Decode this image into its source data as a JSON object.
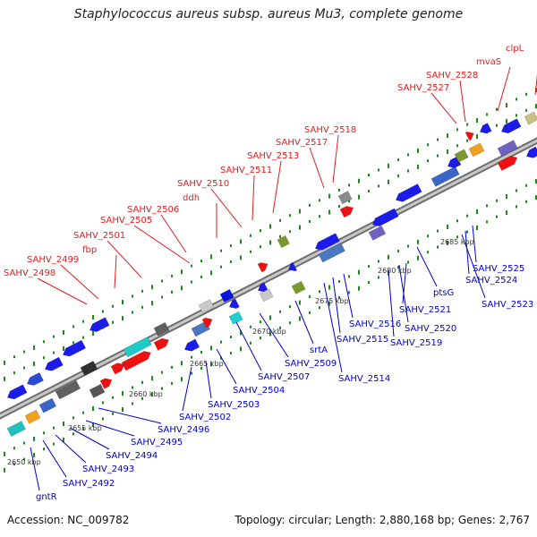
{
  "title": "Staphylococcus aureus subsp. aureus Mu3, complete genome",
  "footer": {
    "accession": "Accession: NC_009782",
    "summary": "Topology: circular; Length: 2,880,168 bp; Genes: 2,767"
  },
  "colors": {
    "forward_label": "#e41a1c",
    "reverse_label": "#0000cc",
    "backbone": "#909090",
    "cds_forward": "#ee1111",
    "cds_reverse": "#0a14e0",
    "dots": "#1a8a1a"
  },
  "ruler_labels": [
    "2650 kbp",
    "2655 kbp",
    "2660 kbp",
    "2665 kbp",
    "2670 kbp",
    "2675 kbp",
    "2680 kbp",
    "2685 kbp"
  ],
  "forward_genes": [
    "SAHV_2498",
    "SAHV_2499",
    "fbp",
    "SAHV_2501",
    "SAHV_2505",
    "SAHV_2506",
    "ddh",
    "SAHV_2510",
    "SAHV_2511",
    "SAHV_2513",
    "SAHV_2517",
    "SAHV_2518",
    "SAHV_2527",
    "SAHV_2528",
    "mvaS",
    "clpL"
  ],
  "reverse_genes": [
    "gntR",
    "SAHV_2492",
    "SAHV_2493",
    "SAHV_2494",
    "SAHV_2495",
    "SAHV_2496",
    "SAHV_2502",
    "SAHV_2503",
    "SAHV_2504",
    "SAHV_2507",
    "SAHV_2509",
    "srtA",
    "SAHV_2514",
    "SAHV_2515",
    "SAHV_2516",
    "SAHV_2519",
    "SAHV_2520",
    "SAHV_2521",
    "ptsG",
    "SAHV_2523",
    "SAHV_2524",
    "SAHV_2525"
  ]
}
